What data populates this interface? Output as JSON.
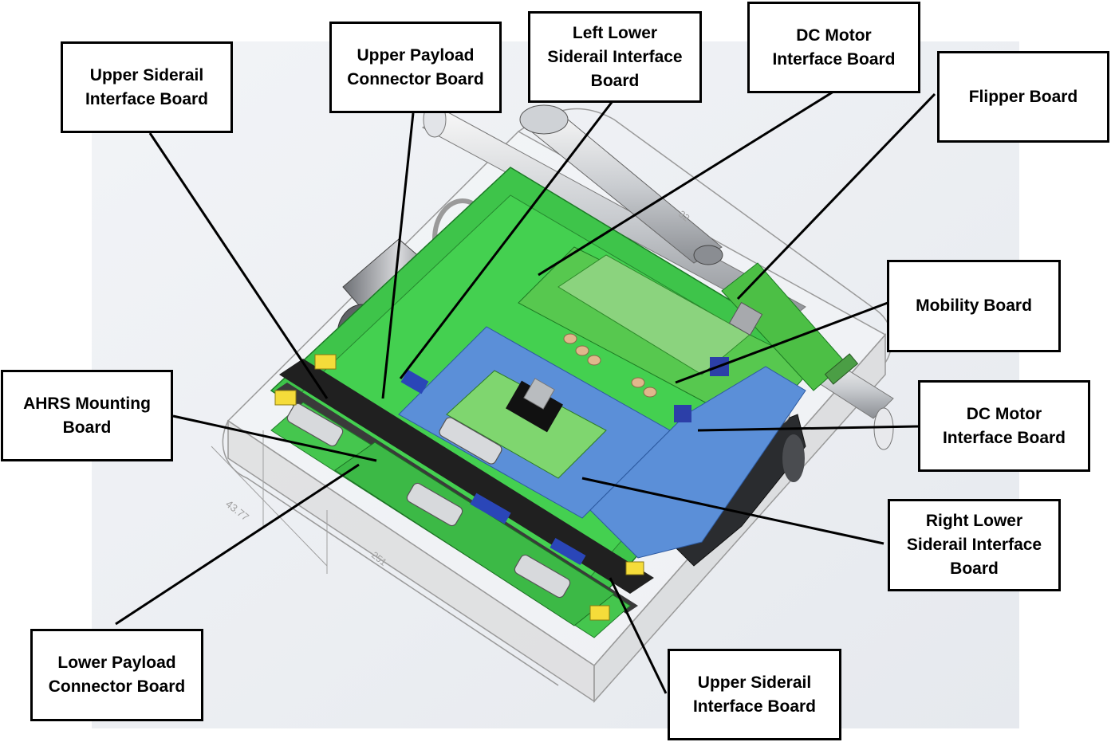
{
  "diagram": {
    "dimension_label": "43.77",
    "dimension_label_2": "251",
    "dimension_label_3": "32"
  },
  "callouts": [
    {
      "id": "upper-siderail-interface-board-top",
      "text": "Upper Siderail\nInterface Board"
    },
    {
      "id": "upper-payload-connector-board",
      "text": "Upper Payload\nConnector Board"
    },
    {
      "id": "left-lower-siderail-interface-board",
      "text": "Left Lower\nSiderail Interface\nBoard"
    },
    {
      "id": "dc-motor-interface-board-top",
      "text": "DC Motor\nInterface Board"
    },
    {
      "id": "flipper-board",
      "text": "Flipper Board"
    },
    {
      "id": "mobility-board",
      "text": "Mobility Board"
    },
    {
      "id": "dc-motor-interface-board-right",
      "text": "DC Motor\nInterface Board"
    },
    {
      "id": "right-lower-siderail-interface-board",
      "text": "Right Lower\nSiderail Interface\nBoard"
    },
    {
      "id": "ahrs-mounting-board",
      "text": "AHRS Mounting\nBoard"
    },
    {
      "id": "lower-payload-connector-board",
      "text": "Lower Payload\nConnector Board"
    },
    {
      "id": "upper-siderail-interface-board-bottom",
      "text": "Upper Siderail\nInterface Board"
    }
  ]
}
